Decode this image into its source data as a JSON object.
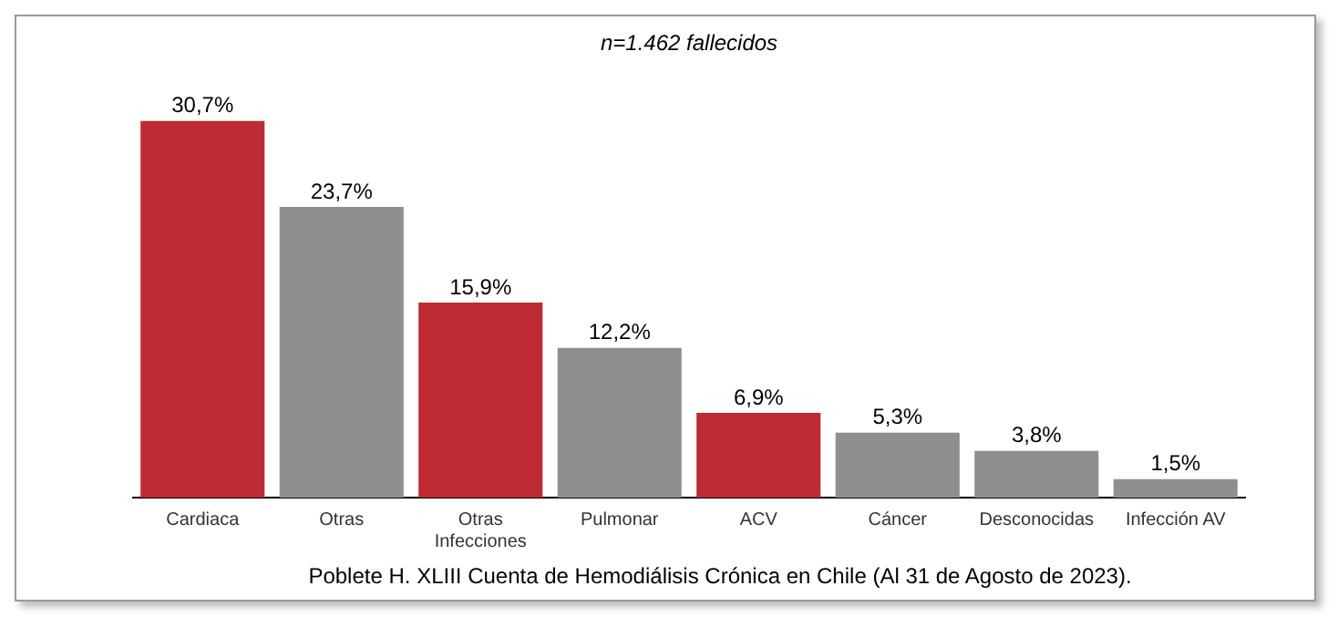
{
  "chart_data": {
    "type": "bar",
    "title": "n=1.462 fallecidos",
    "categories": [
      "Cardiaca",
      "Otras",
      "Otras Infecciones",
      "Pulmonar",
      "ACV",
      "Cáncer",
      "Desconocidas",
      "Infección AV"
    ],
    "values": [
      30.7,
      23.7,
      15.9,
      12.2,
      6.9,
      5.3,
      3.8,
      1.5
    ],
    "colors": [
      "#be2b32",
      "#8f8f8f",
      "#be2b32",
      "#8f8f8f",
      "#be2b32",
      "#8f8f8f",
      "#8f8f8f",
      "#8f8f8f"
    ],
    "value_labels": [
      "30,7%",
      "23,7%",
      "15,9%",
      "12,2%",
      "6,9%",
      "5,3%",
      "3,8%",
      "1,5%"
    ],
    "annotations": [
      "Poblete H. XLIII Cuenta de Hemodiálisis Crónica en Chile (Al 31 de Agosto de 2023)."
    ],
    "grid": false,
    "legend": false
  }
}
